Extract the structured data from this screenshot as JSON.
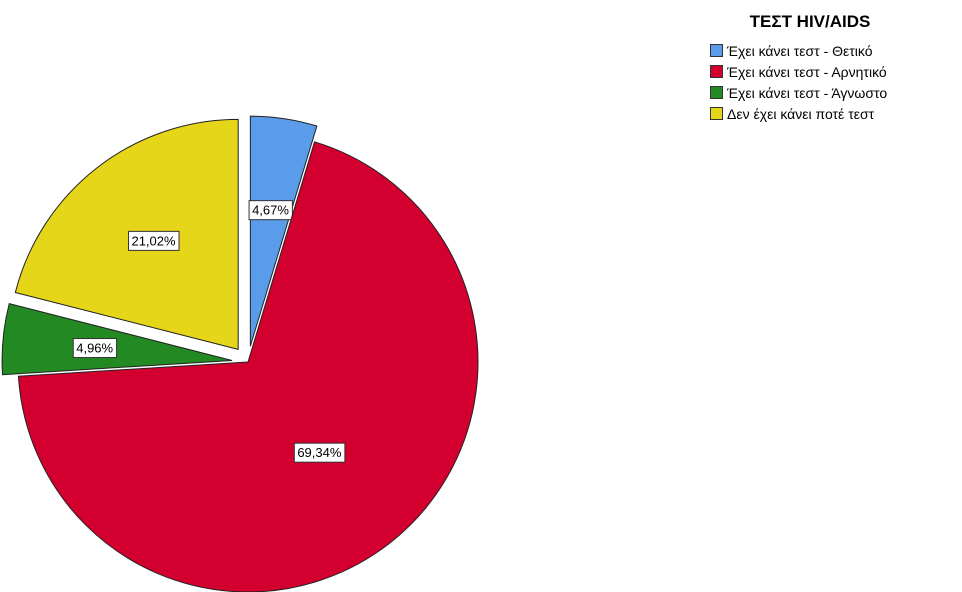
{
  "chart_data": {
    "type": "pie",
    "title": "ΤΕΣΤ HIV/AIDS",
    "legend_position": "top-right",
    "slices": [
      {
        "name": "Έχει κάνει τεστ - Θετικό",
        "value": 4.67,
        "label": "4,67%",
        "color": "#5a9bea",
        "exploded": true
      },
      {
        "name": "Έχει κάνει τεστ - Αρνητικό",
        "value": 69.34,
        "label": "69,34%",
        "color": "#d3002f",
        "exploded": false
      },
      {
        "name": "Έχει κάνει τεστ - Άγνωστο",
        "value": 4.96,
        "label": "4,96%",
        "color": "#238a23",
        "exploded": true
      },
      {
        "name": "Δεν έχει κάνει ποτέ τεστ",
        "value": 21.02,
        "label": "21,02%",
        "color": "#e5d619",
        "exploded": true
      }
    ]
  }
}
